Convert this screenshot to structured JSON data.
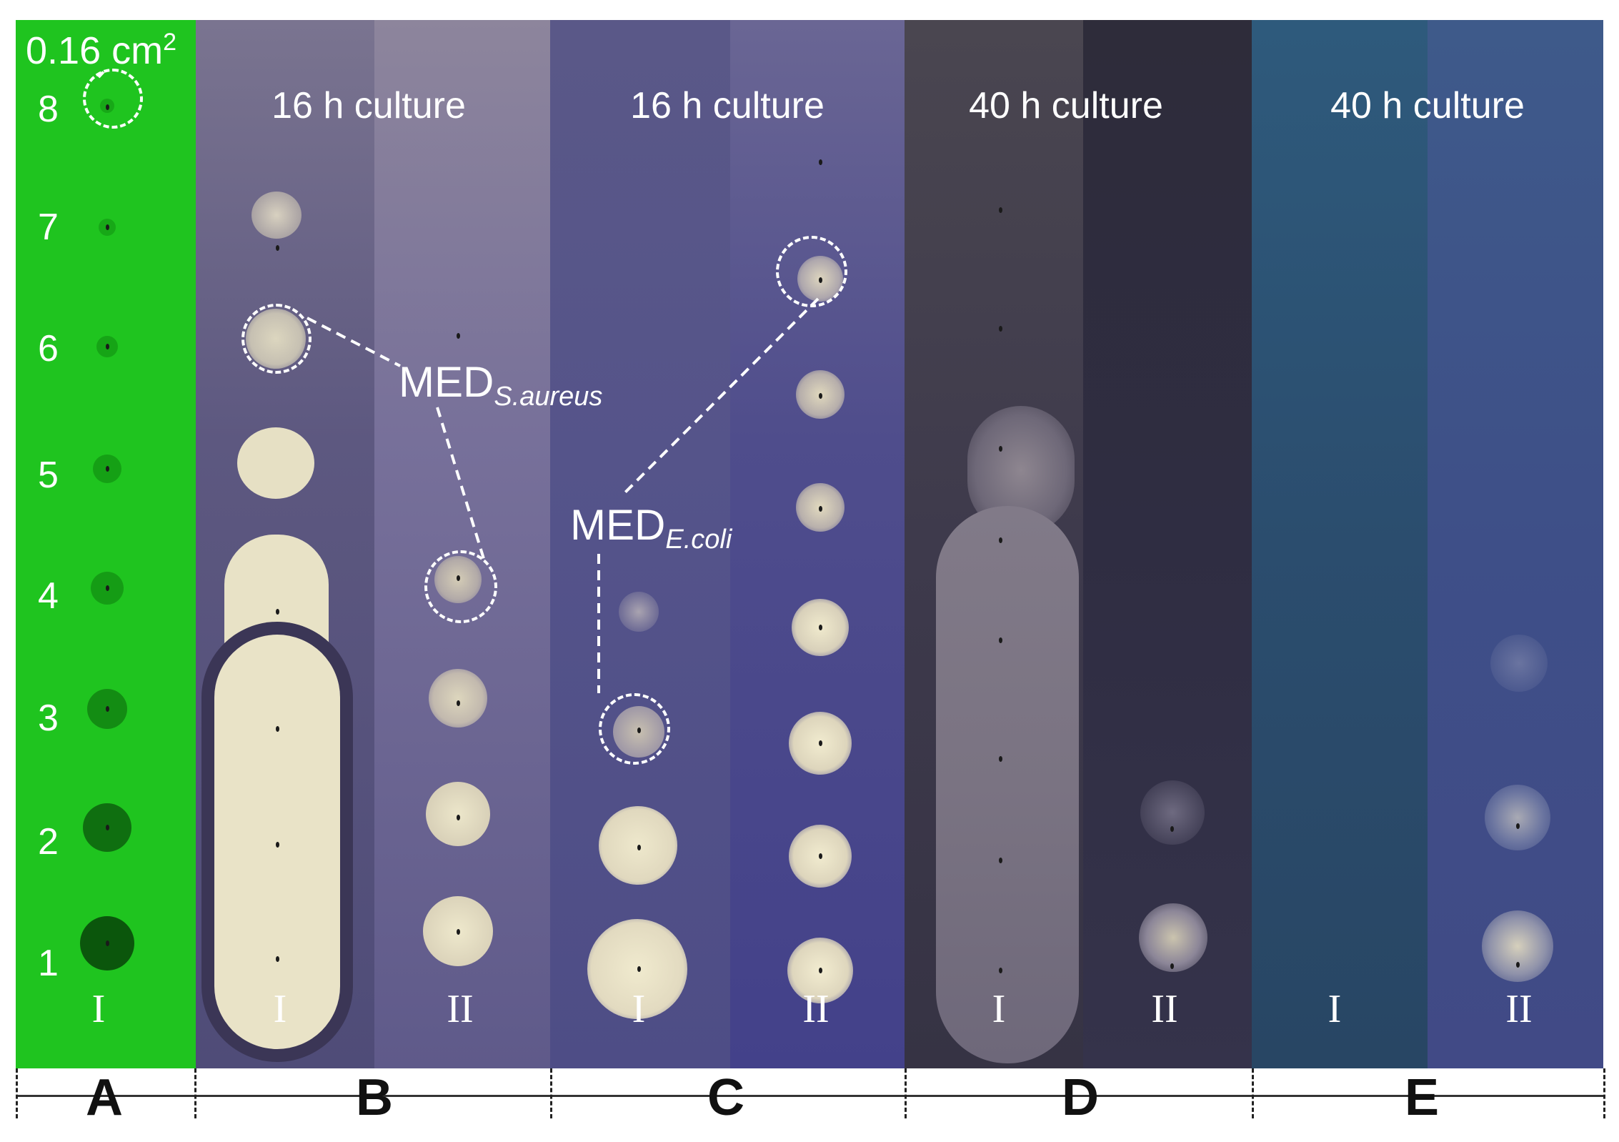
{
  "area_label": "0.16 cm",
  "area_label_sup": "2",
  "rows": [
    "8",
    "7",
    "6",
    "5",
    "4",
    "3",
    "2",
    "1"
  ],
  "culture_labels": [
    "16 h culture",
    "16 h culture",
    "40 h culture",
    "40 h culture"
  ],
  "column_labels": {
    "A": "I",
    "B1": "I",
    "B2": "II",
    "C1": "I",
    "C2": "II",
    "D1": "I",
    "D2": "II",
    "E1": "I",
    "E2": "II"
  },
  "panel_letters": [
    "A",
    "B",
    "C",
    "D",
    "E"
  ],
  "annotations": {
    "med_saureus": {
      "main": "MED",
      "sub": "S.aureus"
    },
    "med_ecoli": {
      "main": "MED",
      "sub": "E.coli"
    }
  },
  "colors": {
    "panel_a": "#1fc41f",
    "panel_b": "#5e5a86",
    "panel_c": "#4f4f8a",
    "panel_d": "#3c3a48",
    "panel_e": "#2f5173",
    "spot": "#ece7c8"
  }
}
